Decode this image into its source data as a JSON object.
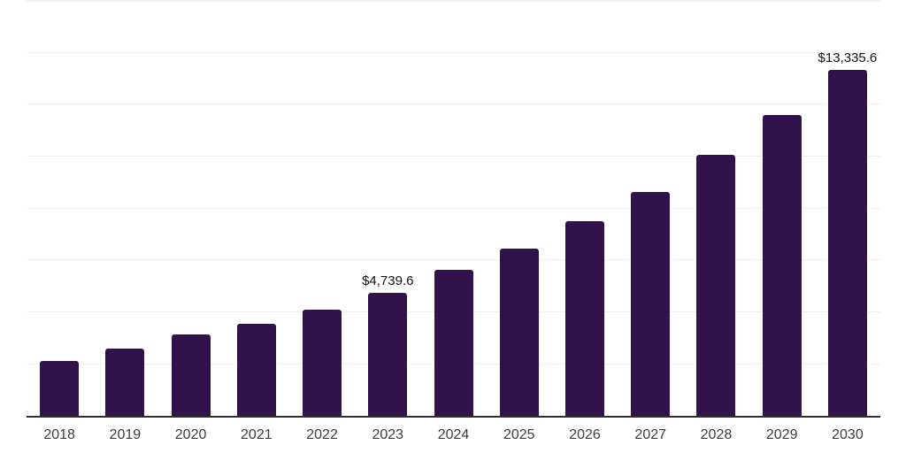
{
  "chart_data": {
    "type": "bar",
    "title": "",
    "xlabel": "",
    "ylabel": "",
    "categories": [
      "2018",
      "2019",
      "2020",
      "2021",
      "2022",
      "2023",
      "2024",
      "2025",
      "2026",
      "2027",
      "2028",
      "2029",
      "2030"
    ],
    "values": [
      2110,
      2600,
      3130,
      3550,
      4090,
      4739.6,
      5620,
      6440,
      7500,
      8620,
      10040,
      11590,
      13335.6
    ],
    "value_labels": [
      "",
      "",
      "",
      "",
      "",
      "$4,739.6",
      "",
      "",
      "",
      "",
      "",
      "",
      "$13,335.6"
    ],
    "ylim": [
      0,
      16000
    ],
    "gridline_step": 2000,
    "grid": true,
    "legend": false,
    "y_axis_labels_visible": false,
    "colors": {
      "bar": "#32124B",
      "grid": "#f1f1f1",
      "axis": "#2e2e2e",
      "tick_label": "#3d3d3d",
      "value_label": "#111111",
      "background": "#ffffff"
    }
  }
}
